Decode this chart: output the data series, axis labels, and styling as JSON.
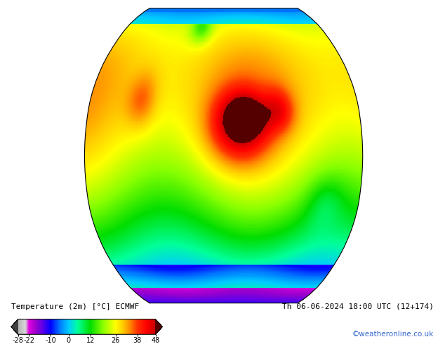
{
  "title_left": "Temperature (2m) [°C] ECMWF",
  "title_right": "Th 06-06-2024 18:00 UTC (12+174)",
  "copyright": "©weatheronline.co.uk",
  "colorbar_ticks": [
    -28,
    -22,
    -10,
    0,
    12,
    26,
    38,
    48
  ],
  "temp_min": -28,
  "temp_max": 48,
  "background_color": "#ffffff",
  "fig_width": 6.34,
  "fig_height": 4.9,
  "dpi": 100,
  "cmap_points": [
    [
      -50,
      "#404040"
    ],
    [
      -28,
      "#b4b4b4"
    ],
    [
      -24,
      "#d8d8d8"
    ],
    [
      -22,
      "#e000e0"
    ],
    [
      -18,
      "#9900cc"
    ],
    [
      -14,
      "#5500ee"
    ],
    [
      -10,
      "#0000ff"
    ],
    [
      -5,
      "#0077ff"
    ],
    [
      0,
      "#00ccff"
    ],
    [
      5,
      "#00ff99"
    ],
    [
      12,
      "#00dd00"
    ],
    [
      19,
      "#88ff00"
    ],
    [
      26,
      "#ffff00"
    ],
    [
      30,
      "#ffcc00"
    ],
    [
      34,
      "#ff8800"
    ],
    [
      38,
      "#ff3300"
    ],
    [
      43,
      "#ff0000"
    ],
    [
      48,
      "#cc0000"
    ],
    [
      55,
      "#550000"
    ]
  ]
}
